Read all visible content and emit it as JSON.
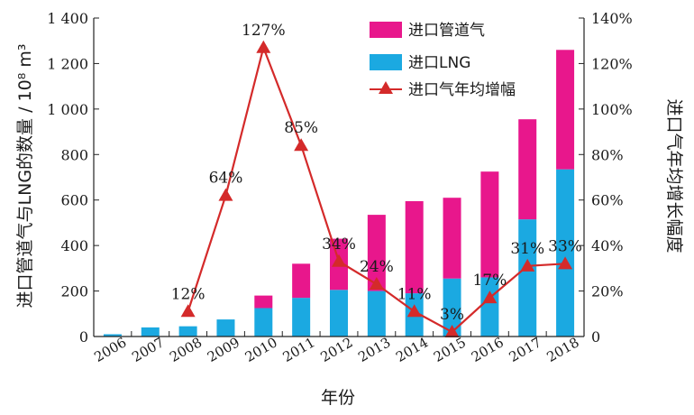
{
  "chart_data": {
    "type": "bar",
    "categories": [
      "2006",
      "2007",
      "2008",
      "2009",
      "2010",
      "2011",
      "2012",
      "2013",
      "2014",
      "2015",
      "2016",
      "2017",
      "2018"
    ],
    "series": [
      {
        "name": "进口LNG",
        "type": "bar",
        "axis": "left",
        "color": "#1ba9e1",
        "values": [
          10,
          40,
          45,
          75,
          125,
          170,
          205,
          200,
          190,
          255,
          260,
          515,
          735
        ]
      },
      {
        "name": "进口管道气",
        "type": "bar",
        "axis": "left",
        "color": "#e8178c",
        "values": [
          0,
          0,
          0,
          0,
          55,
          150,
          225,
          335,
          405,
          355,
          465,
          440,
          525
        ]
      },
      {
        "name": "进口气年均增幅",
        "type": "line",
        "axis": "right",
        "color": "#d42a2a",
        "values": [
          null,
          null,
          12,
          64,
          127,
          85,
          34,
          24,
          11,
          3,
          17,
          31,
          33
        ],
        "plotted_values": [
          null,
          null,
          11,
          62,
          127,
          84,
          33,
          23,
          11,
          2,
          17,
          31,
          32
        ]
      }
    ],
    "data_labels": [
      {
        "category": "2008",
        "text": "12%"
      },
      {
        "category": "2009",
        "text": "64%"
      },
      {
        "category": "2010",
        "text": "127%"
      },
      {
        "category": "2011",
        "text": "85%"
      },
      {
        "category": "2012",
        "text": "34%"
      },
      {
        "category": "2013",
        "text": "24%"
      },
      {
        "category": "2014",
        "text": "11%"
      },
      {
        "category": "2015",
        "text": "3%"
      },
      {
        "category": "2016",
        "text": "17%"
      },
      {
        "category": "2017",
        "text": "31%"
      },
      {
        "category": "2018",
        "text": "33%"
      }
    ],
    "xlabel": "年份",
    "ylabel": "进口管道气与LNG的数量 / 10⁸ m³",
    "y2label": "进口气年均增长幅度",
    "ylim": [
      0,
      1400
    ],
    "y2lim": [
      0,
      140
    ],
    "yticks": [
      "0",
      "200",
      "400",
      "600",
      "800",
      "1 000",
      "1 200",
      "1 400"
    ],
    "y2ticks": [
      "0",
      "20%",
      "40%",
      "60%",
      "80%",
      "100%",
      "120%",
      "140%"
    ],
    "legend_position": "top-right",
    "stacked": true,
    "grid": false
  }
}
